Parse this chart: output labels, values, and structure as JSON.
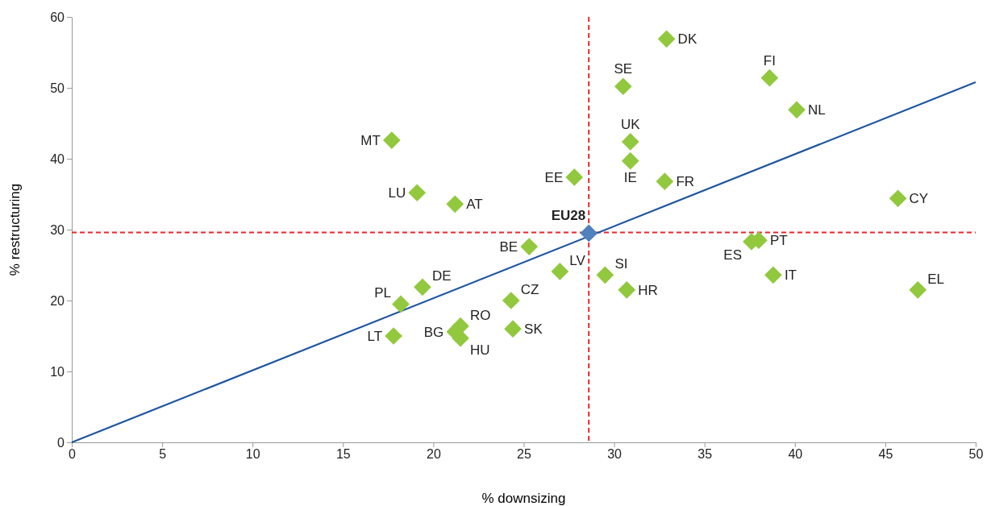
{
  "chart_data": {
    "type": "scatter",
    "xlabel": "% downsizing",
    "ylabel": "% restructuring",
    "xlim": [
      0,
      50
    ],
    "xticks": [
      0,
      5,
      10,
      15,
      20,
      25,
      30,
      35,
      40,
      45,
      50
    ],
    "ylim": [
      0,
      60
    ],
    "yticks": [
      0,
      10,
      20,
      30,
      40,
      50,
      60
    ],
    "grid": false,
    "marker": "diamond",
    "series": [
      {
        "type": "line",
        "marker": "none",
        "color": "#1f56a0",
        "x": [
          0,
          50
        ],
        "values": [
          0,
          50.8
        ]
      },
      {
        "color": "#92c83e",
        "x": [
          32.9,
          30.5,
          38.6,
          40.1,
          17.7,
          30.9,
          30.9,
          27.8,
          32.8,
          19.1,
          21.2,
          45.7,
          25.3,
          37.6,
          38.0,
          27.0,
          29.5,
          38.8,
          30.7,
          46.8,
          19.4,
          18.2,
          24.3,
          21.5,
          21.2,
          21.5,
          24.4,
          17.8
        ],
        "values": [
          56.9,
          50.2,
          51.4,
          46.9,
          42.6,
          42.4,
          39.7,
          37.4,
          36.8,
          35.2,
          33.6,
          34.4,
          27.6,
          28.3,
          28.5,
          24.1,
          23.6,
          23.6,
          21.5,
          21.5,
          21.9,
          19.5,
          20.0,
          16.4,
          15.6,
          14.7,
          16.0,
          15.0
        ]
      },
      {
        "color": "#4f81bd",
        "x": [
          28.6
        ],
        "values": [
          29.5
        ]
      }
    ],
    "ref_lines": [
      {
        "axis": "x",
        "value": 28.6,
        "color": "#e8262b",
        "line_style": "dashed"
      },
      {
        "axis": "y",
        "value": 29.6,
        "color": "#e8262b",
        "line_style": "dashed"
      }
    ],
    "annotations": [
      {
        "text": "DK",
        "x": 32.9,
        "y": 56.9
      },
      {
        "text": "SE",
        "x": 30.5,
        "y": 50.2
      },
      {
        "text": "FI",
        "x": 38.6,
        "y": 51.4
      },
      {
        "text": "NL",
        "x": 40.1,
        "y": 46.9
      },
      {
        "text": "MT",
        "x": 17.7,
        "y": 42.6
      },
      {
        "text": "UK",
        "x": 30.9,
        "y": 42.4
      },
      {
        "text": "IE",
        "x": 30.9,
        "y": 39.7
      },
      {
        "text": "EE",
        "x": 27.8,
        "y": 37.4
      },
      {
        "text": "FR",
        "x": 32.8,
        "y": 36.8
      },
      {
        "text": "LU",
        "x": 19.1,
        "y": 35.2
      },
      {
        "text": "AT",
        "x": 21.2,
        "y": 33.6
      },
      {
        "text": "CY",
        "x": 45.7,
        "y": 34.4
      },
      {
        "text": "BE",
        "x": 25.3,
        "y": 27.6
      },
      {
        "text": "ES",
        "x": 37.6,
        "y": 28.3
      },
      {
        "text": "PT",
        "x": 38.0,
        "y": 28.5
      },
      {
        "text": "LV",
        "x": 27.0,
        "y": 24.1
      },
      {
        "text": "SI",
        "x": 29.5,
        "y": 23.6
      },
      {
        "text": "IT",
        "x": 38.8,
        "y": 23.6
      },
      {
        "text": "HR",
        "x": 30.7,
        "y": 21.5
      },
      {
        "text": "EL",
        "x": 46.8,
        "y": 21.5
      },
      {
        "text": "DE",
        "x": 19.4,
        "y": 21.9
      },
      {
        "text": "PL",
        "x": 18.2,
        "y": 19.5
      },
      {
        "text": "CZ",
        "x": 24.3,
        "y": 20.0
      },
      {
        "text": "RO",
        "x": 21.5,
        "y": 16.4
      },
      {
        "text": "BG",
        "x": 21.2,
        "y": 15.6
      },
      {
        "text": "HU",
        "x": 21.5,
        "y": 14.7
      },
      {
        "text": "SK",
        "x": 24.4,
        "y": 16.0
      },
      {
        "text": "LT",
        "x": 17.8,
        "y": 15.0
      },
      {
        "text": "EU28",
        "x": 28.6,
        "y": 29.5
      }
    ]
  }
}
